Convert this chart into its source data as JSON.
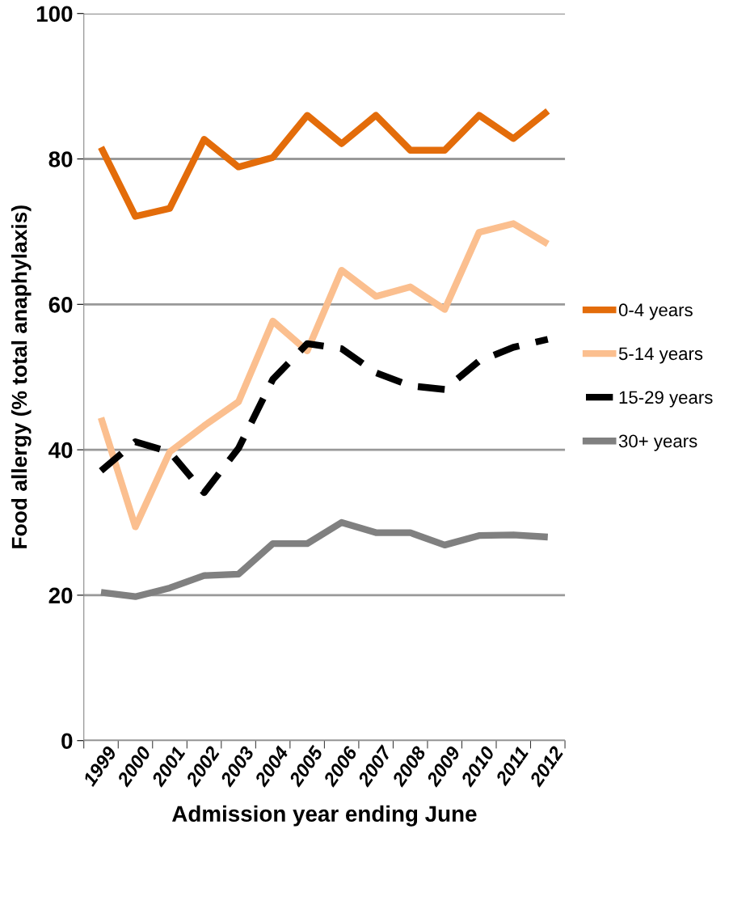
{
  "chart_data": {
    "type": "line",
    "xlabel": "Admission year ending June",
    "ylabel": "Food allergy (% total anaphylaxis)",
    "categories": [
      "1999",
      "2000",
      "2001",
      "2002",
      "2003",
      "2004",
      "2005",
      "2006",
      "2007",
      "2008",
      "2009",
      "2010",
      "2011",
      "2012"
    ],
    "series": [
      {
        "name": "0-4 years",
        "color": "#e36c0a",
        "line_style": "solid",
        "values": [
          81.6,
          72.1,
          73.2,
          82.7,
          78.9,
          80.2,
          86,
          82.1,
          86,
          81.2,
          81.2,
          86,
          82.8,
          86.6
        ]
      },
      {
        "name": "5-14 years",
        "color": "#fbbf8f",
        "line_style": "solid",
        "values": [
          44.4,
          29.4,
          39.7,
          43.3,
          46.6,
          57.7,
          53.6,
          64.7,
          61.1,
          62.4,
          59.3,
          69.9,
          71.1,
          68.3
        ]
      },
      {
        "name": "15-29 years",
        "color": "#000000",
        "line_style": "dashed",
        "values": [
          37.1,
          41.1,
          39.7,
          34.1,
          40.2,
          49.7,
          54.6,
          53.9,
          50.6,
          48.8,
          48.3,
          52.2,
          54.1,
          55.2
        ]
      },
      {
        "name": "30+ years",
        "color": "#808080",
        "line_style": "solid",
        "values": [
          20.4,
          19.8,
          21,
          22.7,
          22.9,
          27.1,
          27.1,
          30,
          28.6,
          28.6,
          26.9,
          28.2,
          28.3,
          28
        ]
      }
    ],
    "ylim": [
      0,
      100
    ],
    "yticks": [
      0,
      20,
      40,
      60,
      80,
      100
    ],
    "grid": "y",
    "legend": "right",
    "marker": "none"
  }
}
